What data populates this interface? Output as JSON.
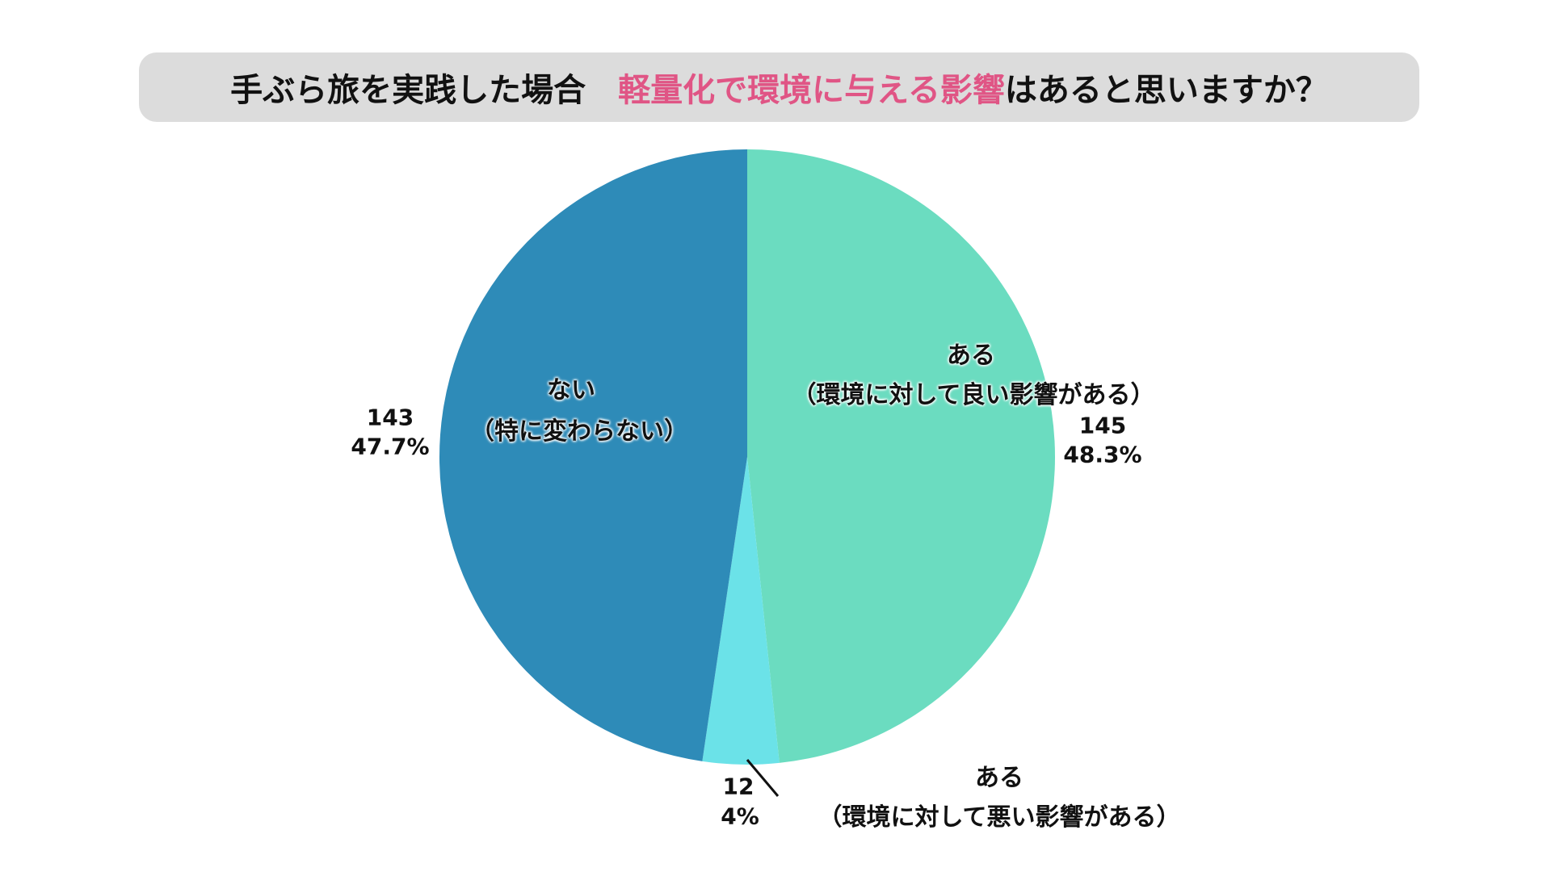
{
  "chart_data": {
    "type": "pie",
    "title_parts": [
      "手ぶら旅を実践した場合　",
      "軽量化で環境に与える影響",
      "はあると思いますか？"
    ],
    "title_highlight_color": "#e05585",
    "slices": [
      {
        "name": "ある",
        "sub": "（環境に対して良い影響がある）",
        "value": 145,
        "percent": "48.3%",
        "color": "#6bdcc0"
      },
      {
        "name": "ある",
        "sub": "（環境に対して悪い影響がある）",
        "value": 12,
        "percent": "4%",
        "color": "#6be2e8"
      },
      {
        "name": "ない",
        "sub": "（特に変わらない）",
        "value": 143,
        "percent": "47.7%",
        "color": "#2e8bb8"
      }
    ],
    "start_angle": "top",
    "direction": "clockwise"
  }
}
